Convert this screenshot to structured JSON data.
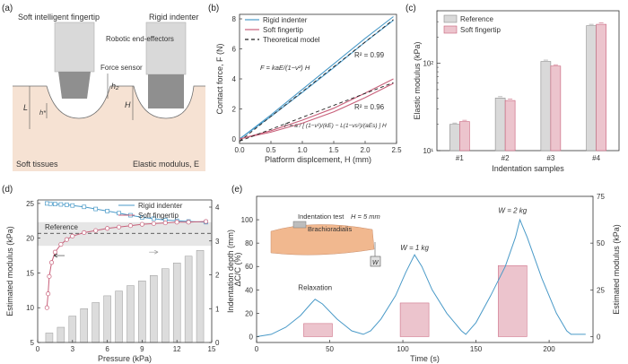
{
  "panels": {
    "a": {
      "letter": "(a)",
      "finger_label": "Soft intelligent fingertip",
      "indenter_label": "Rigid indenter",
      "effector_label": "Robotic\nend-effectors",
      "force_sensor_label": "Force sensor",
      "soft_tissue_label": "Soft tissues",
      "modulus_label": "Elastic modulus, E",
      "L": "L",
      "h_star": "h*",
      "h2": "h₂",
      "H": "H"
    },
    "b": {
      "letter": "(b)"
    },
    "c": {
      "letter": "(c)"
    },
    "d": {
      "letter": "(d)"
    },
    "e": {
      "letter": "(e)",
      "inset_test": "Indentation test",
      "inset_H": "H = 5 mm",
      "inset_muscle": "Brachioradialis",
      "inset_w": "W"
    }
  },
  "colors": {
    "blue": "#4a9ac8",
    "pink": "#c8607a",
    "pinkfill": "#ecc4cd",
    "gray": "#d9d9d9",
    "band": "#e6e6e6"
  },
  "chart_data": [
    {
      "id": "b",
      "type": "line",
      "title": "",
      "xlabel": "Platform displcement, H (mm)",
      "ylabel": "Contact force, F (N)",
      "xlim": [
        0,
        2.5
      ],
      "ylim": [
        -0.3,
        8.3
      ],
      "xticks": [
        "0.0",
        "0.5",
        "1.0",
        "1.5",
        "2.0",
        "2.5"
      ],
      "yticks": [
        "0",
        "2",
        "4",
        "6",
        "8"
      ],
      "legend": [
        "Rigid indenter",
        "Soft fingertip",
        "Theoretical model"
      ],
      "annotations": [
        "R² = 0.99",
        "R² = 0.96",
        "F = kaE/(1−ν²) H",
        "F = a / [ (1−ν²)/(kE) − L(1−νs²)/(aEs) ] H"
      ],
      "series": [
        {
          "name": "Rigid indenter",
          "x": [
            0,
            0.5,
            1,
            1.5,
            2,
            2.45
          ],
          "y": [
            0,
            1.6,
            3.3,
            5,
            6.7,
            8.15
          ]
        },
        {
          "name": "Rigid indenter (return)",
          "x": [
            0,
            0.5,
            1,
            1.5,
            2,
            2.45
          ],
          "y": [
            0,
            1.5,
            3.1,
            4.75,
            6.45,
            7.9
          ]
        },
        {
          "name": "Soft fingertip",
          "x": [
            0,
            0.5,
            1,
            1.5,
            2,
            2.45
          ],
          "y": [
            0,
            0.55,
            1.25,
            2.05,
            3.05,
            4.0
          ]
        },
        {
          "name": "Soft fingertip (return)",
          "x": [
            0,
            0.5,
            1,
            1.5,
            2,
            2.45
          ],
          "y": [
            0,
            0.45,
            1.05,
            1.8,
            2.75,
            3.7
          ]
        },
        {
          "name": "Theoretical model (rigid)",
          "x": [
            0,
            2.45
          ],
          "y": [
            -0.15,
            7.95
          ]
        },
        {
          "name": "Theoretical model (soft)",
          "x": [
            0,
            2.45
          ],
          "y": [
            -0.15,
            3.75
          ]
        }
      ]
    },
    {
      "id": "c",
      "type": "bar",
      "xlabel": "Indentation samples",
      "ylabel": "Elastic modulus (kPa)",
      "yscale": "log",
      "ylim": [
        10,
        400
      ],
      "yticks": [
        "10¹",
        "10²"
      ],
      "categories": [
        "#1",
        "#2",
        "#3",
        "#4"
      ],
      "legend": [
        "Reference",
        "Soft fingertip"
      ],
      "series": [
        {
          "name": "Reference",
          "values": [
            20,
            40,
            105,
            270
          ]
        },
        {
          "name": "Soft fingertip",
          "values": [
            21.5,
            37.5,
            93,
            280
          ]
        }
      ]
    },
    {
      "id": "d",
      "type": "line",
      "xlabel": "Pressure (kPa)",
      "ylabel": "Estimated modulus (kPa)",
      "y2label": "Indentation depth (mm)",
      "xlim": [
        0,
        15
      ],
      "ylim": [
        5,
        25.5
      ],
      "y2lim": [
        0,
        4
      ],
      "xticks": [
        "0",
        "3",
        "6",
        "9",
        "12",
        "15"
      ],
      "yticks": [
        "5",
        "10",
        "15",
        "20",
        "25"
      ],
      "y2ticks": [
        "0",
        "1",
        "2",
        "3",
        "4"
      ],
      "legend": [
        "Rigid indenter",
        "Soft fingertip"
      ],
      "reference_label": "Reference",
      "reference_value": 20.7,
      "reference_band": [
        18.9,
        22.3
      ],
      "series": [
        {
          "name": "Rigid indenter",
          "x": [
            0.8,
            1.1,
            1.5,
            2,
            2.5,
            3,
            4,
            5,
            6,
            7,
            8,
            9,
            10,
            11,
            12,
            13,
            14.5
          ],
          "y": [
            25,
            24.95,
            24.9,
            24.85,
            24.8,
            24.7,
            24.5,
            24.2,
            23.9,
            23.6,
            23.3,
            23.0,
            22.8,
            22.6,
            22.5,
            22.4,
            22.3
          ]
        },
        {
          "name": "Soft fingertip",
          "x": [
            0.8,
            0.9,
            1.0,
            1.2,
            1.5,
            2,
            2.5,
            3,
            4,
            5,
            6,
            7,
            8,
            9,
            10,
            11,
            12,
            13,
            14.5
          ],
          "y": [
            10,
            12,
            14.5,
            16.5,
            18,
            19.1,
            19.8,
            20.3,
            20.8,
            21.1,
            21.4,
            21.6,
            21.8,
            22.0,
            22.1,
            22.2,
            22.3,
            22.3,
            22.4
          ]
        },
        {
          "name": "Indentation depth",
          "type": "bar",
          "x": [
            1,
            2,
            3,
            4,
            5,
            6,
            7,
            8,
            9,
            10,
            11,
            12,
            13,
            14
          ],
          "y": [
            0.28,
            0.45,
            0.78,
            1.0,
            1.18,
            1.38,
            1.52,
            1.68,
            1.82,
            1.98,
            2.18,
            2.35,
            2.55,
            2.72
          ]
        }
      ]
    },
    {
      "id": "e",
      "type": "line",
      "xlabel": "Time (s)",
      "ylabel": "ΔC/C (%)",
      "y2label": "Estimated modulus (kPa)",
      "xlim": [
        0,
        230
      ],
      "ylim": [
        -5,
        120
      ],
      "y2lim": [
        0,
        75
      ],
      "xticks": [
        "0",
        "50",
        "100",
        "150",
        "200"
      ],
      "yticks": [
        "0",
        "20",
        "40",
        "60",
        "80",
        "100"
      ],
      "y2ticks": [
        "0",
        "25",
        "50",
        "75"
      ],
      "annotations": [
        "Relaxation",
        "W = 1 kg",
        "W = 2 kg"
      ],
      "series": [
        {
          "name": "ΔC/C",
          "x": [
            0,
            10,
            20,
            30,
            37,
            40,
            45,
            55,
            65,
            73,
            78,
            85,
            95,
            102,
            108,
            113,
            120,
            130,
            140,
            143,
            150,
            160,
            170,
            177,
            180,
            185,
            195,
            205,
            212,
            215,
            225
          ],
          "y": [
            0,
            2,
            8,
            18,
            28,
            32,
            28,
            15,
            5,
            2,
            5,
            15,
            35,
            55,
            70,
            60,
            40,
            20,
            5,
            2,
            12,
            35,
            60,
            85,
            100,
            85,
            50,
            20,
            5,
            2,
            2
          ]
        },
        {
          "name": "Estimated modulus",
          "type": "bar",
          "x": [
            42,
            108,
            175
          ],
          "y": [
            7,
            18,
            38
          ]
        }
      ]
    }
  ]
}
